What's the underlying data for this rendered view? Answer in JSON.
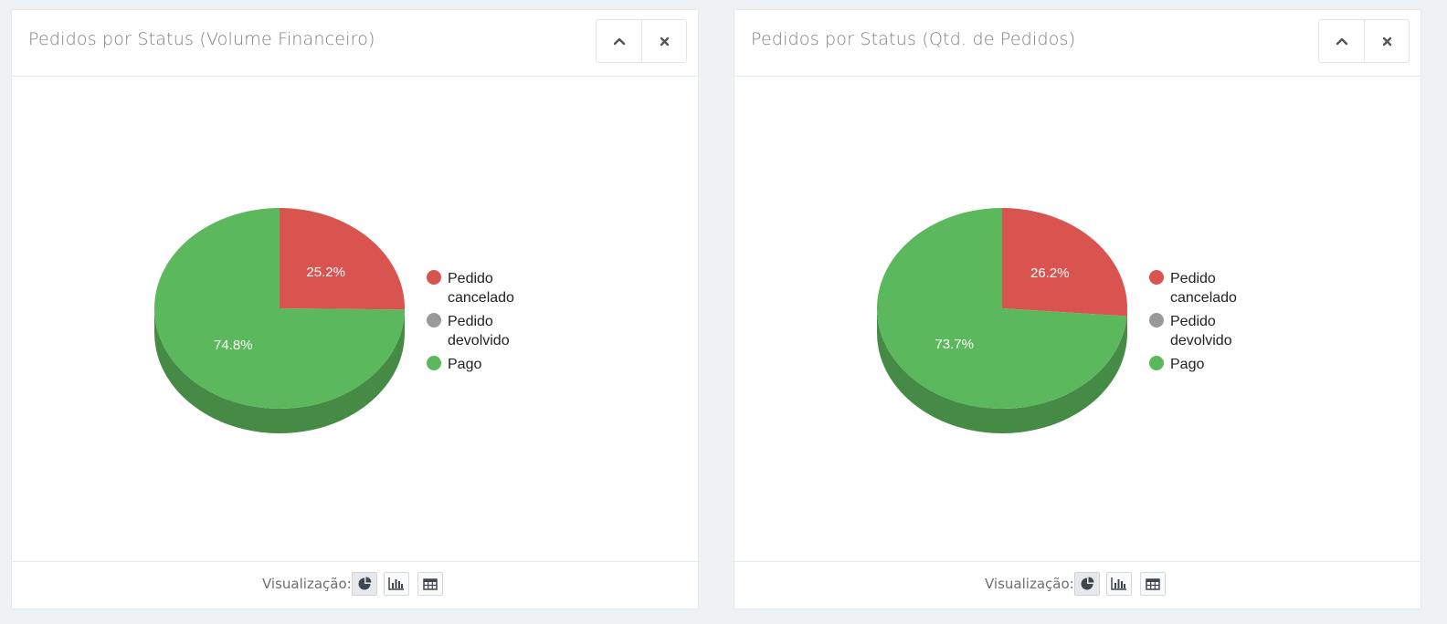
{
  "panels": [
    {
      "title": "Pedidos por Status (Volume Financeiro)",
      "footer_label": "Visualização:",
      "icons": {
        "collapse": "chevron-up-icon",
        "close": "close-icon",
        "pie": "pie-chart-icon",
        "bar": "bar-chart-icon",
        "table": "table-icon"
      }
    },
    {
      "title": "Pedidos por Status (Qtd. de Pedidos)",
      "footer_label": "Visualização:",
      "icons": {
        "collapse": "chevron-up-icon",
        "close": "close-icon",
        "pie": "pie-chart-icon",
        "bar": "bar-chart-icon",
        "table": "table-icon"
      }
    }
  ],
  "chart_data": [
    {
      "type": "pie",
      "title": "Pedidos por Status (Volume Financeiro)",
      "categories": [
        "Pedido cancelado",
        "Pedido devolvido",
        "Pago"
      ],
      "values": [
        25.2,
        0,
        74.8
      ],
      "labels": [
        "25.2%",
        "",
        "74.8%"
      ],
      "colors": [
        "#d9534f",
        "#999999",
        "#5cb85c"
      ],
      "legend": {
        "position": "right",
        "lines": [
          [
            "Pedido",
            "cancelado"
          ],
          [
            "Pedido",
            "devolvido"
          ],
          [
            "Pago"
          ]
        ]
      }
    },
    {
      "type": "pie",
      "title": "Pedidos por Status (Qtd. de Pedidos)",
      "categories": [
        "Pedido cancelado",
        "Pedido devolvido",
        "Pago"
      ],
      "values": [
        26.2,
        0,
        73.7
      ],
      "labels": [
        "26.2%",
        "",
        "73.7%"
      ],
      "colors": [
        "#d9534f",
        "#999999",
        "#5cb85c"
      ],
      "legend": {
        "position": "right",
        "lines": [
          [
            "Pedido",
            "cancelado"
          ],
          [
            "Pedido",
            "devolvido"
          ],
          [
            "Pago"
          ]
        ]
      }
    }
  ]
}
